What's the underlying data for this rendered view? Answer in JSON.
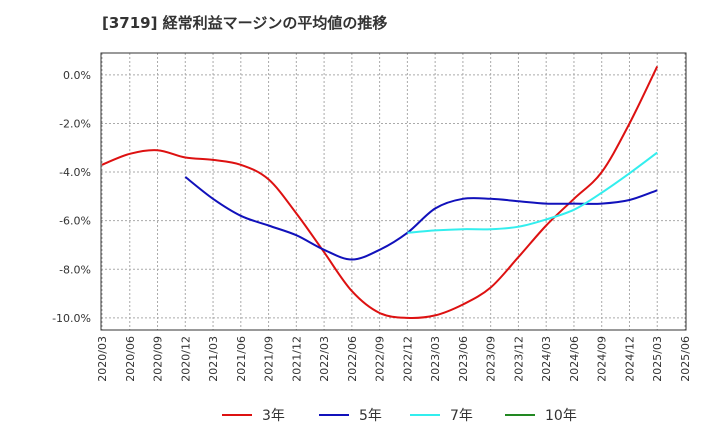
{
  "chart_data": {
    "type": "line",
    "title": "[3719]  経常利益マージンの平均値の推移",
    "xlabel": "",
    "ylabel": "",
    "x_ticks": [
      "2020/03",
      "2020/06",
      "2020/09",
      "2020/12",
      "2021/03",
      "2021/06",
      "2021/09",
      "2021/12",
      "2022/03",
      "2022/06",
      "2022/09",
      "2022/12",
      "2023/03",
      "2023/06",
      "2023/09",
      "2023/12",
      "2024/03",
      "2024/06",
      "2024/09",
      "2024/12",
      "2025/03",
      "2025/06"
    ],
    "y_ticks": [
      "0.0%",
      "-2.0%",
      "-4.0%",
      "-6.0%",
      "-8.0%",
      "-10.0%"
    ],
    "y_tick_values": [
      0,
      -2,
      -4,
      -6,
      -8,
      -10
    ],
    "ylim": [
      -10.5,
      0.9
    ],
    "grid": true,
    "legend_position": "bottom",
    "series": [
      {
        "name": "3年",
        "color": "#dd1111",
        "x": [
          "2020/03",
          "2020/06",
          "2020/09",
          "2020/12",
          "2021/03",
          "2021/06",
          "2021/09",
          "2021/12",
          "2022/03",
          "2022/06",
          "2022/09",
          "2022/12",
          "2023/03",
          "2023/06",
          "2023/09",
          "2023/12",
          "2024/03",
          "2024/06",
          "2024/09",
          "2024/12",
          "2025/03"
        ],
        "values": [
          -3.7,
          -3.25,
          -3.1,
          -3.4,
          -3.5,
          -3.7,
          -4.3,
          -5.7,
          -7.3,
          -8.9,
          -9.8,
          -10.0,
          -9.9,
          -9.45,
          -8.75,
          -7.5,
          -6.2,
          -5.1,
          -4.0,
          -2.0,
          0.35
        ]
      },
      {
        "name": "5年",
        "color": "#1111bb",
        "x": [
          "2020/12",
          "2021/03",
          "2021/06",
          "2021/09",
          "2021/12",
          "2022/03",
          "2022/06",
          "2022/09",
          "2022/12",
          "2023/03",
          "2023/06",
          "2023/09",
          "2023/12",
          "2024/03",
          "2024/06",
          "2024/09",
          "2024/12",
          "2025/03"
        ],
        "values": [
          -4.2,
          -5.1,
          -5.8,
          -6.2,
          -6.6,
          -7.2,
          -7.6,
          -7.2,
          -6.5,
          -5.5,
          -5.1,
          -5.1,
          -5.2,
          -5.3,
          -5.3,
          -5.3,
          -5.15,
          -4.75
        ]
      },
      {
        "name": "7年",
        "color": "#33eeee",
        "x": [
          "2022/12",
          "2023/03",
          "2023/06",
          "2023/09",
          "2023/12",
          "2024/03",
          "2024/06",
          "2024/09",
          "2024/12",
          "2025/03"
        ],
        "values": [
          -6.5,
          -6.4,
          -6.35,
          -6.35,
          -6.25,
          -5.95,
          -5.55,
          -4.85,
          -4.05,
          -3.2
        ]
      },
      {
        "name": "10年",
        "color": "#228822",
        "x": [],
        "values": []
      }
    ]
  }
}
